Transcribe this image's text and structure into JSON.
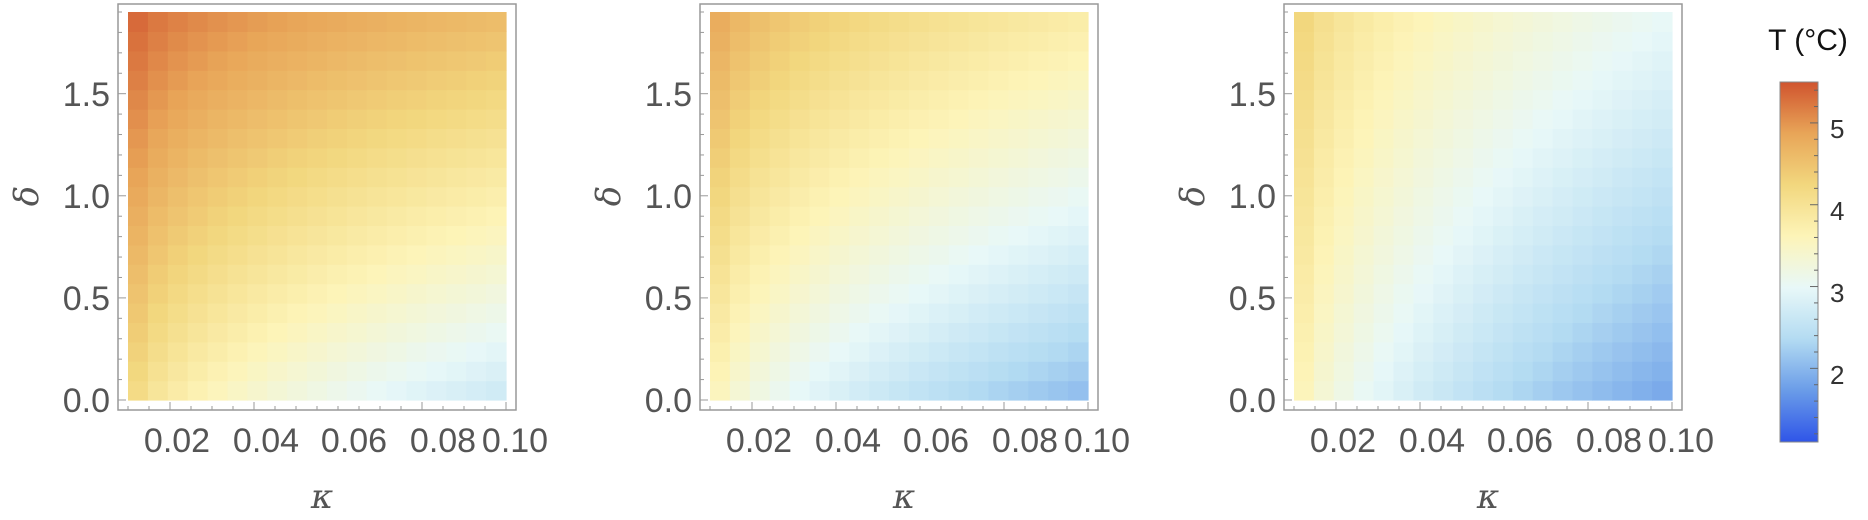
{
  "chart_data": {
    "type": "heatmap",
    "grid": {
      "nx": 19,
      "ny": 20
    },
    "panels": [
      {
        "xlabel": "κ",
        "ylabel": "δ",
        "xlim": [
          0.01,
          0.1
        ],
        "ylim": [
          0.0,
          1.9
        ],
        "xticks": [
          "0.02",
          "0.04",
          "0.06",
          "0.08",
          "0.10"
        ],
        "yticks": [
          "0.0",
          "0.5",
          "1.0",
          "1.5"
        ],
        "corner_values": {
          "kappa_min_delta_max": 5.5,
          "kappa_max_delta_max": 4.6,
          "kappa_min_delta_min": 4.4,
          "kappa_max_delta_min": 2.6
        }
      },
      {
        "xlabel": "κ",
        "ylabel": "δ",
        "xlim": [
          0.01,
          0.1
        ],
        "ylim": [
          0.0,
          1.9
        ],
        "xticks": [
          "0.02",
          "0.04",
          "0.06",
          "0.08",
          "0.10"
        ],
        "yticks": [
          "0.0",
          "0.5",
          "1.0",
          "1.5"
        ],
        "corner_values": {
          "kappa_min_delta_max": 5.0,
          "kappa_max_delta_max": 3.8,
          "kappa_min_delta_min": 3.8,
          "kappa_max_delta_min": 2.0
        }
      },
      {
        "xlabel": "κ",
        "ylabel": "δ",
        "xlim": [
          0.01,
          0.1
        ],
        "ylim": [
          0.0,
          1.9
        ],
        "xticks": [
          "0.02",
          "0.04",
          "0.06",
          "0.08",
          "0.10"
        ],
        "yticks": [
          "0.0",
          "0.5",
          "1.0",
          "1.5"
        ],
        "corner_values": {
          "kappa_min_delta_max": 4.5,
          "kappa_max_delta_max": 3.0,
          "kappa_min_delta_min": 3.9,
          "kappa_max_delta_min": 1.8
        }
      }
    ],
    "colorbar": {
      "title": "T (°C)",
      "range": [
        1.1,
        5.5
      ],
      "ticks": [
        "2",
        "3",
        "4",
        "5"
      ],
      "colormap": [
        "#2f55e8",
        "#6a9ce8",
        "#b3dbf2",
        "#e8f8f8",
        "#fdf4b8",
        "#f2d77e",
        "#e8a558",
        "#d0542e"
      ]
    }
  }
}
